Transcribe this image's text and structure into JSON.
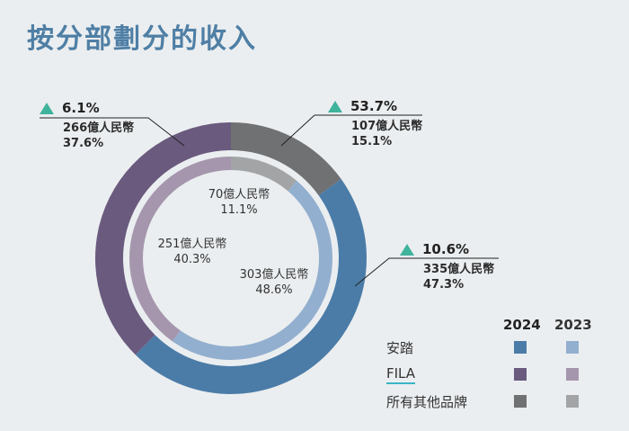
{
  "title": "按分部劃分的收入",
  "legend": {
    "year_current": "2024",
    "year_prev": "2023",
    "items": [
      {
        "name": "安踏",
        "color_2024": "#4b7ca8",
        "color_2023": "#93afcf"
      },
      {
        "name": "FILA",
        "color_2024": "#6a5a7e",
        "color_2023": "#a596ad"
      },
      {
        "name": "所有其他品牌",
        "color_2024": "#6f7172",
        "color_2023": "#a3a4a5"
      }
    ]
  },
  "chart_data": {
    "type": "pie",
    "subtype": "nested-donut",
    "title": "按分部劃分的收入",
    "unit": "億人民幣",
    "series": [
      {
        "name": "2024",
        "ring": "outer",
        "slices": [
          {
            "segment": "所有其他品牌",
            "value": 107,
            "value_label": "107億人民幣",
            "share": 15.1,
            "share_label": "15.1%",
            "growth_label": "53.7%"
          },
          {
            "segment": "安踏",
            "value": 335,
            "value_label": "335億人民幣",
            "share": 47.3,
            "share_label": "47.3%",
            "growth_label": "10.6%"
          },
          {
            "segment": "FILA",
            "value": 266,
            "value_label": "266億人民幣",
            "share": 37.6,
            "share_label": "37.6%",
            "growth_label": "6.1%"
          }
        ]
      },
      {
        "name": "2023",
        "ring": "inner",
        "slices": [
          {
            "segment": "所有其他品牌",
            "value": 70,
            "value_label": "70億人民幣",
            "share": 11.1,
            "share_label": "11.1%"
          },
          {
            "segment": "安踏",
            "value": 303,
            "value_label": "303億人民幣",
            "share": 48.6,
            "share_label": "48.6%"
          },
          {
            "segment": "FILA",
            "value": 251,
            "value_label": "251億人民幣",
            "share": 40.3,
            "share_label": "40.3%"
          }
        ]
      }
    ]
  }
}
